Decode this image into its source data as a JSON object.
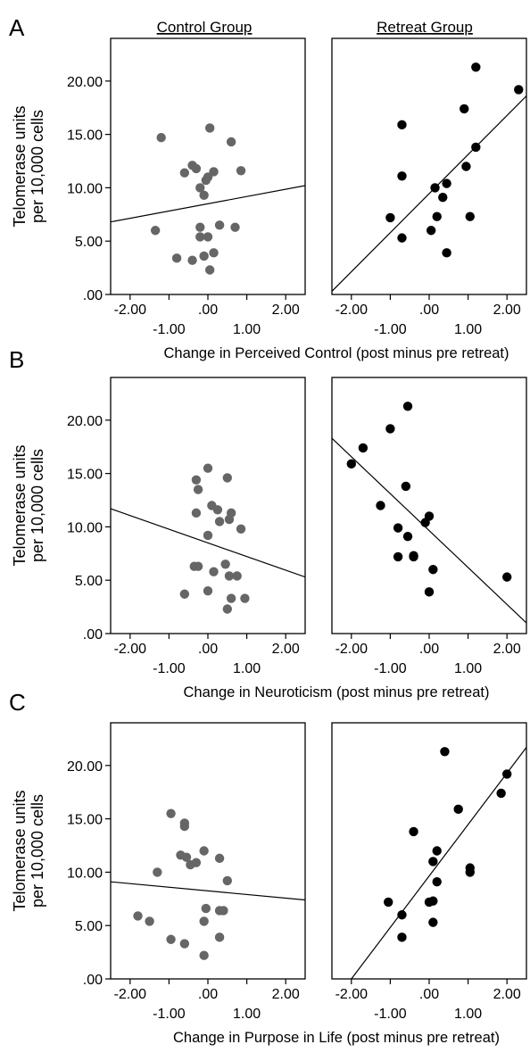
{
  "figure": {
    "column_titles": [
      "Control Group",
      "Retreat Group"
    ],
    "ylabel_line1": "Telomerase units",
    "ylabel_line2": "per 10,000 cells",
    "colors": {
      "control_points": "#666666",
      "retreat_points": "#000000",
      "line": "#000000",
      "frame": "#000000"
    }
  },
  "chart_data": [
    {
      "type": "scatter",
      "panel_letter": "A",
      "xlabel": "Change in Perceived Control (post minus pre retreat)",
      "y_ticks": [
        ".00",
        "5.00",
        "10.00",
        "15.00",
        "20.00"
      ],
      "ylim": [
        0,
        24
      ],
      "subplots": [
        {
          "group": "Control Group",
          "xlim": [
            -2.5,
            2.5
          ],
          "x_ticks_upper": [
            "-2.00",
            ".00",
            "2.00"
          ],
          "x_ticks_lower": [
            "-1.00",
            "1.00"
          ],
          "points": [
            [
              -1.2,
              14.7
            ],
            [
              0.05,
              15.6
            ],
            [
              0.6,
              14.3
            ],
            [
              -0.6,
              11.4
            ],
            [
              -0.4,
              12.1
            ],
            [
              -0.3,
              11.8
            ],
            [
              0.15,
              11.5
            ],
            [
              0.85,
              11.6
            ],
            [
              -0.2,
              10.0
            ],
            [
              -0.05,
              10.7
            ],
            [
              0.0,
              11.0
            ],
            [
              -0.1,
              9.3
            ],
            [
              -1.35,
              6.0
            ],
            [
              -0.2,
              6.3
            ],
            [
              0.3,
              6.5
            ],
            [
              0.7,
              6.3
            ],
            [
              -0.2,
              5.4
            ],
            [
              0.0,
              5.4
            ],
            [
              -0.8,
              3.4
            ],
            [
              -0.4,
              3.2
            ],
            [
              -0.1,
              3.6
            ],
            [
              0.15,
              3.9
            ],
            [
              0.05,
              2.3
            ]
          ],
          "fit_line": [
            [
              -2.5,
              6.8
            ],
            [
              2.5,
              10.2
            ]
          ]
        },
        {
          "group": "Retreat Group",
          "xlim": [
            -2.5,
            2.5
          ],
          "x_ticks_upper": [
            "-2.00",
            ".00",
            "2.00"
          ],
          "x_ticks_lower": [
            "-1.00",
            "1.00"
          ],
          "points": [
            [
              1.2,
              21.3
            ],
            [
              2.3,
              19.2
            ],
            [
              0.9,
              17.4
            ],
            [
              -0.7,
              15.9
            ],
            [
              1.2,
              13.8
            ],
            [
              0.95,
              12.0
            ],
            [
              -0.7,
              11.1
            ],
            [
              0.15,
              10.0
            ],
            [
              0.45,
              10.4
            ],
            [
              0.35,
              9.1
            ],
            [
              -1.0,
              7.2
            ],
            [
              0.2,
              7.3
            ],
            [
              1.05,
              7.3
            ],
            [
              0.05,
              6.0
            ],
            [
              -0.7,
              5.3
            ],
            [
              0.45,
              3.9
            ]
          ],
          "fit_line": [
            [
              -2.5,
              0.3
            ],
            [
              2.5,
              18.6
            ]
          ]
        }
      ]
    },
    {
      "type": "scatter",
      "panel_letter": "B",
      "xlabel": "Change in Neuroticism (post minus pre retreat)",
      "y_ticks": [
        ".00",
        "5.00",
        "10.00",
        "15.00",
        "20.00"
      ],
      "ylim": [
        0,
        24
      ],
      "subplots": [
        {
          "group": "Control Group",
          "xlim": [
            -2.5,
            2.5
          ],
          "x_ticks_upper": [
            "-2.00",
            ".00",
            "2.00"
          ],
          "x_ticks_lower": [
            "-1.00",
            "1.00"
          ],
          "points": [
            [
              0.0,
              15.5
            ],
            [
              -0.3,
              14.4
            ],
            [
              0.5,
              14.6
            ],
            [
              -0.25,
              13.5
            ],
            [
              0.1,
              12.0
            ],
            [
              0.25,
              11.6
            ],
            [
              -0.3,
              11.3
            ],
            [
              0.6,
              11.3
            ],
            [
              0.3,
              10.5
            ],
            [
              0.55,
              10.7
            ],
            [
              0.85,
              9.8
            ],
            [
              0.0,
              9.2
            ],
            [
              -0.35,
              6.3
            ],
            [
              -0.25,
              6.3
            ],
            [
              0.45,
              6.5
            ],
            [
              0.15,
              5.8
            ],
            [
              0.55,
              5.4
            ],
            [
              0.75,
              5.4
            ],
            [
              -0.6,
              3.7
            ],
            [
              0.0,
              4.0
            ],
            [
              0.6,
              3.3
            ],
            [
              0.95,
              3.3
            ],
            [
              0.5,
              2.3
            ]
          ],
          "fit_line": [
            [
              -2.5,
              11.7
            ],
            [
              2.5,
              5.3
            ]
          ]
        },
        {
          "group": "Retreat Group",
          "xlim": [
            -2.5,
            2.5
          ],
          "x_ticks_upper": [
            "-2.00",
            ".00",
            "2.00"
          ],
          "x_ticks_lower": [
            "-1.00",
            "1.00"
          ],
          "points": [
            [
              -0.55,
              21.3
            ],
            [
              -1.0,
              19.2
            ],
            [
              -1.7,
              17.4
            ],
            [
              -2.0,
              15.9
            ],
            [
              -0.6,
              13.8
            ],
            [
              -1.25,
              12.0
            ],
            [
              0.0,
              11.0
            ],
            [
              -0.1,
              10.4
            ],
            [
              -0.8,
              9.9
            ],
            [
              -0.55,
              9.1
            ],
            [
              -0.4,
              7.2
            ],
            [
              -0.4,
              7.3
            ],
            [
              -0.8,
              7.2
            ],
            [
              0.1,
              6.0
            ],
            [
              2.0,
              5.3
            ],
            [
              0.0,
              3.9
            ]
          ],
          "fit_line": [
            [
              -2.5,
              18.3
            ],
            [
              2.5,
              1.0
            ]
          ]
        }
      ]
    },
    {
      "type": "scatter",
      "panel_letter": "C",
      "xlabel": "Change in Purpose in Life (post minus pre retreat)",
      "y_ticks": [
        ".00",
        "5.00",
        "10.00",
        "15.00",
        "20.00"
      ],
      "ylim": [
        0,
        24
      ],
      "subplots": [
        {
          "group": "Control Group",
          "xlim": [
            -2.5,
            2.5
          ],
          "x_ticks_upper": [
            "-2.00",
            ".00",
            "2.00"
          ],
          "x_ticks_lower": [
            "-1.00",
            "1.00"
          ],
          "points": [
            [
              -0.95,
              15.5
            ],
            [
              -0.6,
              14.6
            ],
            [
              -0.6,
              14.3
            ],
            [
              -0.1,
              12.0
            ],
            [
              -0.7,
              11.6
            ],
            [
              -0.55,
              11.4
            ],
            [
              0.3,
              11.3
            ],
            [
              -0.45,
              10.7
            ],
            [
              -0.3,
              10.9
            ],
            [
              -1.3,
              10.0
            ],
            [
              0.5,
              9.2
            ],
            [
              -0.05,
              6.6
            ],
            [
              0.3,
              6.4
            ],
            [
              0.4,
              6.4
            ],
            [
              -1.8,
              5.9
            ],
            [
              -1.5,
              5.4
            ],
            [
              -0.1,
              5.4
            ],
            [
              -0.95,
              3.7
            ],
            [
              -0.6,
              3.3
            ],
            [
              0.3,
              3.9
            ],
            [
              -0.1,
              2.2
            ]
          ],
          "fit_line": [
            [
              -2.5,
              9.1
            ],
            [
              2.5,
              7.4
            ]
          ]
        },
        {
          "group": "Retreat Group",
          "xlim": [
            -2.5,
            2.5
          ],
          "x_ticks_upper": [
            "-2.00",
            ".00",
            "2.00"
          ],
          "x_ticks_lower": [
            "-1.00",
            "1.00"
          ],
          "points": [
            [
              0.4,
              21.3
            ],
            [
              2.0,
              19.2
            ],
            [
              1.85,
              17.4
            ],
            [
              0.75,
              15.9
            ],
            [
              -0.4,
              13.8
            ],
            [
              0.2,
              12.0
            ],
            [
              0.1,
              11.0
            ],
            [
              1.05,
              10.4
            ],
            [
              1.05,
              10.0
            ],
            [
              0.2,
              9.1
            ],
            [
              -1.05,
              7.2
            ],
            [
              0.0,
              7.2
            ],
            [
              0.1,
              7.3
            ],
            [
              -0.7,
              6.0
            ],
            [
              0.1,
              5.3
            ],
            [
              -0.7,
              3.9
            ]
          ],
          "fit_line": [
            [
              -2.0,
              0.0
            ],
            [
              2.5,
              21.7
            ]
          ]
        }
      ]
    }
  ]
}
